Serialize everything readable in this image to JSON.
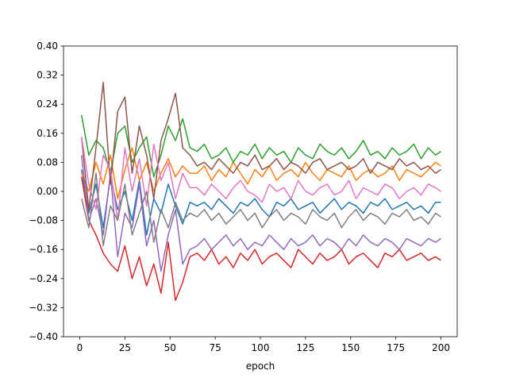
{
  "chart_data": {
    "type": "line",
    "x_label": "epoch",
    "x": [
      1,
      5,
      9,
      13,
      17,
      21,
      25,
      29,
      33,
      37,
      41,
      45,
      49,
      53,
      57,
      61,
      65,
      69,
      73,
      77,
      81,
      85,
      89,
      93,
      97,
      101,
      105,
      109,
      113,
      117,
      121,
      125,
      129,
      133,
      137,
      141,
      145,
      149,
      153,
      157,
      161,
      165,
      169,
      173,
      177,
      181,
      185,
      189,
      193,
      197,
      200
    ],
    "series": [
      {
        "color": "#1f77b4",
        "values": [
          0.06,
          -0.06,
          0.02,
          -0.1,
          0.04,
          -0.05,
          0.0,
          -0.08,
          0.03,
          -0.12,
          -0.02,
          -0.06,
          0.02,
          -0.04,
          -0.09,
          -0.03,
          -0.04,
          -0.03,
          -0.05,
          -0.02,
          -0.04,
          -0.06,
          -0.03,
          -0.04,
          -0.02,
          -0.05,
          -0.07,
          -0.03,
          -0.04,
          -0.02,
          -0.05,
          -0.04,
          -0.03,
          -0.06,
          -0.04,
          -0.02,
          -0.05,
          -0.03,
          -0.04,
          -0.06,
          -0.03,
          -0.04,
          -0.02,
          -0.05,
          -0.04,
          -0.03,
          -0.05,
          -0.04,
          -0.06,
          -0.03,
          -0.03
        ]
      },
      {
        "color": "#ff7f0e",
        "values": [
          0.05,
          0.0,
          0.08,
          0.02,
          0.1,
          -0.02,
          0.06,
          0.12,
          0.03,
          0.08,
          0.0,
          0.05,
          0.09,
          0.04,
          0.07,
          0.05,
          0.05,
          0.07,
          0.03,
          0.06,
          0.04,
          0.08,
          0.05,
          0.02,
          0.06,
          0.04,
          0.07,
          0.03,
          0.05,
          0.06,
          0.04,
          0.08,
          0.05,
          0.03,
          0.06,
          0.05,
          0.04,
          0.07,
          0.03,
          0.05,
          0.06,
          0.04,
          0.05,
          0.07,
          0.03,
          0.06,
          0.05,
          0.04,
          0.06,
          0.08,
          0.07
        ]
      },
      {
        "color": "#2ca02c",
        "values": [
          0.21,
          0.1,
          0.14,
          0.12,
          0.05,
          0.16,
          0.18,
          0.08,
          0.12,
          0.15,
          0.04,
          0.1,
          0.18,
          0.14,
          0.2,
          0.12,
          0.11,
          0.13,
          0.09,
          0.1,
          0.12,
          0.08,
          0.11,
          0.1,
          0.13,
          0.09,
          0.12,
          0.1,
          0.11,
          0.08,
          0.12,
          0.1,
          0.09,
          0.13,
          0.11,
          0.1,
          0.12,
          0.09,
          0.11,
          0.14,
          0.1,
          0.11,
          0.09,
          0.12,
          0.1,
          0.11,
          0.13,
          0.09,
          0.12,
          0.1,
          0.11
        ]
      },
      {
        "color": "#d62728",
        "values": [
          0.04,
          -0.08,
          -0.12,
          -0.17,
          -0.2,
          -0.22,
          -0.15,
          -0.24,
          -0.18,
          -0.26,
          -0.2,
          -0.28,
          -0.14,
          -0.3,
          -0.25,
          -0.18,
          -0.17,
          -0.19,
          -0.16,
          -0.2,
          -0.18,
          -0.21,
          -0.17,
          -0.19,
          -0.16,
          -0.2,
          -0.18,
          -0.17,
          -0.19,
          -0.21,
          -0.16,
          -0.18,
          -0.2,
          -0.17,
          -0.19,
          -0.18,
          -0.16,
          -0.2,
          -0.18,
          -0.17,
          -0.19,
          -0.21,
          -0.17,
          -0.18,
          -0.16,
          -0.19,
          -0.18,
          -0.17,
          -0.19,
          -0.18,
          -0.19
        ]
      },
      {
        "color": "#9467bd",
        "values": [
          0.1,
          -0.08,
          -0.02,
          -0.12,
          0.05,
          -0.18,
          -0.06,
          -0.1,
          0.02,
          -0.15,
          -0.08,
          -0.22,
          -0.12,
          -0.05,
          -0.2,
          -0.16,
          -0.15,
          -0.13,
          -0.16,
          -0.14,
          -0.12,
          -0.15,
          -0.13,
          -0.16,
          -0.14,
          -0.15,
          -0.12,
          -0.14,
          -0.16,
          -0.13,
          -0.15,
          -0.14,
          -0.12,
          -0.15,
          -0.13,
          -0.14,
          -0.16,
          -0.13,
          -0.15,
          -0.12,
          -0.14,
          -0.15,
          -0.13,
          -0.14,
          -0.16,
          -0.13,
          -0.14,
          -0.15,
          -0.13,
          -0.14,
          -0.13
        ]
      },
      {
        "color": "#8c564b",
        "values": [
          0.15,
          -0.05,
          0.12,
          0.3,
          0.02,
          0.22,
          0.26,
          0.05,
          0.18,
          0.1,
          -0.02,
          0.14,
          0.2,
          0.27,
          0.12,
          0.1,
          0.07,
          0.08,
          0.06,
          0.09,
          0.07,
          0.05,
          0.08,
          0.07,
          0.1,
          0.06,
          0.07,
          0.09,
          0.06,
          0.08,
          0.07,
          0.05,
          0.08,
          0.09,
          0.06,
          0.07,
          0.08,
          0.06,
          0.07,
          0.09,
          0.05,
          0.08,
          0.07,
          0.06,
          0.09,
          0.07,
          0.08,
          0.06,
          0.07,
          0.05,
          0.06
        ]
      },
      {
        "color": "#e377c2",
        "values": [
          0.15,
          0.02,
          -0.05,
          0.1,
          0.06,
          -0.08,
          0.12,
          0.0,
          0.09,
          -0.04,
          0.13,
          0.03,
          0.08,
          -0.02,
          0.05,
          0.01,
          0.01,
          -0.01,
          0.02,
          0.0,
          -0.02,
          0.01,
          0.03,
          0.0,
          -0.01,
          -0.03,
          0.02,
          0.0,
          0.01,
          -0.02,
          0.03,
          0.0,
          -0.01,
          0.01,
          0.02,
          -0.01,
          0.0,
          0.03,
          -0.02,
          0.01,
          0.0,
          -0.01,
          0.02,
          0.01,
          -0.02,
          0.0,
          0.01,
          -0.01,
          0.02,
          0.01,
          0.0
        ]
      },
      {
        "color": "#7f7f7f",
        "values": [
          -0.02,
          -0.1,
          0.05,
          -0.15,
          -0.04,
          -0.08,
          0.02,
          -0.12,
          -0.06,
          0.0,
          -0.14,
          -0.05,
          -0.1,
          -0.03,
          -0.08,
          -0.06,
          -0.07,
          -0.05,
          -0.08,
          -0.06,
          -0.09,
          -0.07,
          -0.05,
          -0.08,
          -0.06,
          -0.1,
          -0.07,
          -0.05,
          -0.08,
          -0.06,
          -0.07,
          -0.09,
          -0.05,
          -0.07,
          -0.08,
          -0.06,
          -0.1,
          -0.07,
          -0.05,
          -0.08,
          -0.06,
          -0.07,
          -0.09,
          -0.06,
          -0.07,
          -0.05,
          -0.08,
          -0.07,
          -0.09,
          -0.06,
          -0.07
        ]
      }
    ],
    "xlim": [
      -9,
      209
    ],
    "xticks": [
      0,
      25,
      50,
      75,
      100,
      125,
      150,
      175,
      200
    ],
    "ylim": [
      -0.4,
      0.4
    ],
    "yticks": [
      {
        "value": -0.4,
        "label": "−0.40"
      },
      {
        "value": -0.32,
        "label": "−0.32"
      },
      {
        "value": -0.24,
        "label": "−0.24"
      },
      {
        "value": -0.16,
        "label": "−0.16"
      },
      {
        "value": -0.08,
        "label": "−0.08"
      },
      {
        "value": 0,
        "label": "0.00"
      },
      {
        "value": 0.08,
        "label": "0.08"
      },
      {
        "value": 0.16,
        "label": "0.16"
      },
      {
        "value": 0.24,
        "label": "0.24"
      },
      {
        "value": 0.32,
        "label": "0.32"
      },
      {
        "value": 0.4,
        "label": "0.40"
      }
    ]
  }
}
